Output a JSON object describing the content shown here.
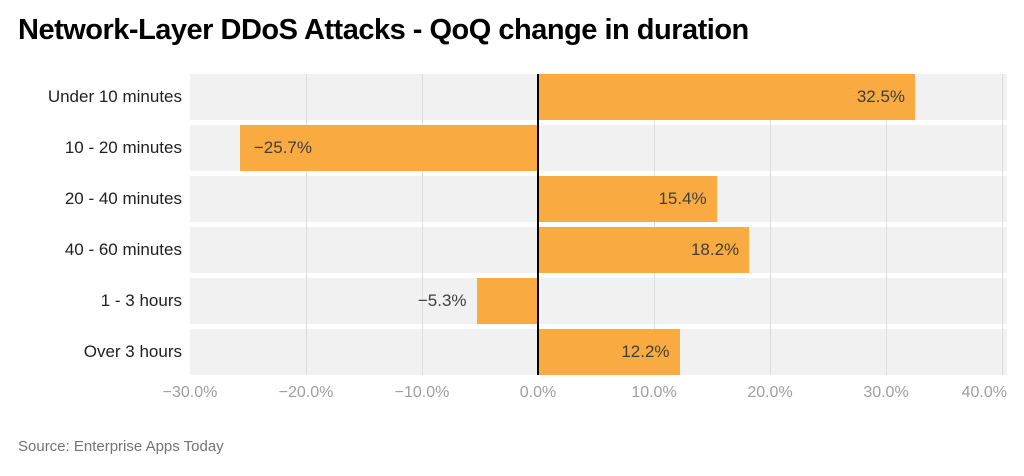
{
  "chart": {
    "title": "Network-Layer DDoS Attacks - QoQ change in duration",
    "source": "Source: Enterprise Apps Today"
  },
  "colors": {
    "bar": "#F9AB41",
    "row_band": "#F1F1F1",
    "gridline": "#DCDCDC",
    "zero_line": "#000000",
    "axis_label": "#9E9E9E",
    "category_label": "#212121",
    "value_label": "#3F3F3F",
    "title": "#000000",
    "source": "#737373"
  },
  "chart_data": {
    "type": "bar",
    "orientation": "horizontal",
    "title": "Network-Layer DDoS Attacks - QoQ change in duration",
    "categories": [
      "Under 10 minutes",
      "10 - 20 minutes",
      "20 - 40 minutes",
      "40 - 60 minutes",
      "1 - 3 hours",
      "Over 3 hours"
    ],
    "values": [
      32.5,
      -25.7,
      15.4,
      18.2,
      -5.3,
      12.2
    ],
    "value_suffix": "%",
    "data_labels": [
      "32.5%",
      "−25.7%",
      "15.4%",
      "18.2%",
      "−5.3%",
      "12.2%"
    ],
    "xlabel": "",
    "ylabel": "",
    "xlim": [
      -30,
      40.43
    ],
    "xticks": [
      -30,
      -20,
      -10,
      0,
      10,
      20,
      30,
      40
    ],
    "xtick_labels": [
      "−30.0%",
      "−20.0%",
      "−10.0%",
      "0.0%",
      "10.0%",
      "20.0%",
      "30.0%",
      "40.0%"
    ],
    "grid": true,
    "legend": false,
    "source": "Source: Enterprise Apps Today"
  }
}
